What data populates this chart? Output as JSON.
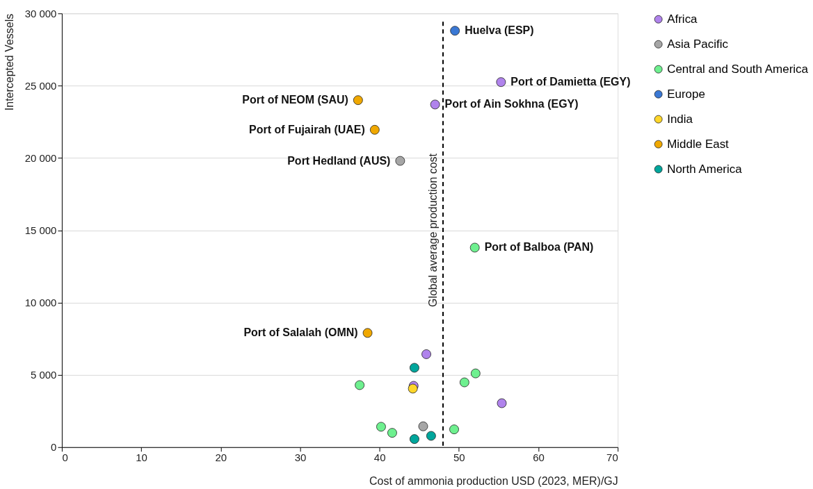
{
  "chart_data": {
    "type": "scatter",
    "xlabel": "Cost of ammonia production USD (2023, MER)/GJ",
    "ylabel": "Intercepted Vessels",
    "xlim": [
      0,
      70
    ],
    "xticks": [
      0,
      10,
      20,
      30,
      40,
      50,
      60,
      70
    ],
    "ylim": [
      0,
      30000
    ],
    "yticks": [
      0,
      {
        "value": 5000,
        "label": "5 000"
      },
      {
        "value": 10000,
        "label": "10 000"
      },
      {
        "value": 15000,
        "label": "15 000"
      },
      {
        "value": 20000,
        "label": "20 000"
      },
      {
        "value": 25000,
        "label": "25 000"
      },
      {
        "value": 30000,
        "label": "30 000"
      }
    ],
    "grid": "y",
    "legend": "right",
    "marker": "circle",
    "series": [
      {
        "name": "Africa",
        "color": "#b083ec",
        "x": [
          55.3,
          47.0,
          45.9,
          44.3,
          55.4
        ],
        "values": [
          25250,
          23700,
          6430,
          4240,
          3040
        ]
      },
      {
        "name": "Asia Pacific",
        "color": "#a6a6a6",
        "x": [
          42.6,
          45.5
        ],
        "values": [
          19800,
          1440
        ]
      },
      {
        "name": "Central and South America",
        "color": "#6ef08f",
        "x": [
          52.0,
          37.5,
          50.7,
          52.1,
          40.2,
          41.6,
          49.4
        ],
        "values": [
          13800,
          4290,
          4480,
          5100,
          1410,
          990,
          1230
        ]
      },
      {
        "name": "Europe",
        "color": "#3a78d4",
        "x": [
          49.5
        ],
        "values": [
          28800
        ]
      },
      {
        "name": "India",
        "color": "#ffd62a",
        "x": [
          44.2
        ],
        "values": [
          4050
        ]
      },
      {
        "name": "Middle East",
        "color": "#f0a800",
        "x": [
          37.3,
          39.4,
          38.5
        ],
        "values": [
          24000,
          21950,
          7900
        ]
      },
      {
        "name": "North America",
        "color": "#00a69c",
        "x": [
          44.4,
          46.5,
          44.4
        ],
        "values": [
          5490,
          780,
          560
        ]
      }
    ],
    "ref_lines": [
      {
        "axis": "x",
        "value": 48.0,
        "label": "Global average production cost",
        "line_style": "dashed",
        "color": "#000000"
      }
    ],
    "annotations": [
      {
        "text": "Huelva (ESP)",
        "x": 49.5,
        "y": 28800
      },
      {
        "text": "Port of Damietta (EGY)",
        "x": 55.3,
        "y": 25250
      },
      {
        "text": "Port of Ain Sokhna (EGY)",
        "x": 47.0,
        "y": 23700
      },
      {
        "text": "Port of NEOM (SAU)",
        "x": 37.3,
        "y": 24000
      },
      {
        "text": "Port of Fujairah (UAE)",
        "x": 39.4,
        "y": 21950
      },
      {
        "text": "Port Hedland (AUS)",
        "x": 42.6,
        "y": 19800
      },
      {
        "text": "Port of Balboa (PAN)",
        "x": 52.0,
        "y": 13800
      },
      {
        "text": "Port of Salalah (OMN)",
        "x": 38.5,
        "y": 7900
      }
    ]
  }
}
